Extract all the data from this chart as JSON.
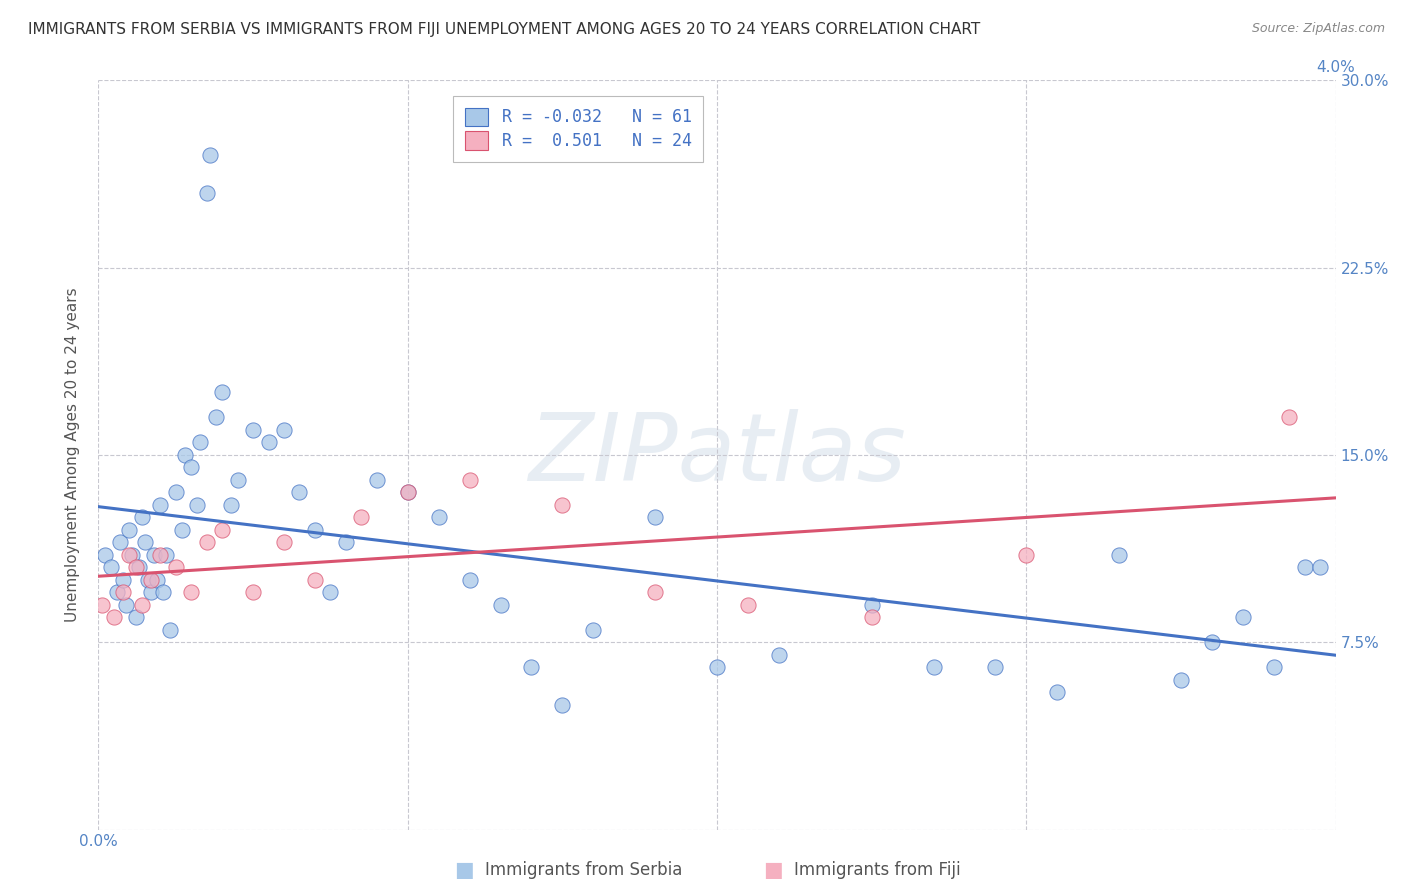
{
  "title": "IMMIGRANTS FROM SERBIA VS IMMIGRANTS FROM FIJI UNEMPLOYMENT AMONG AGES 20 TO 24 YEARS CORRELATION CHART",
  "source": "Source: ZipAtlas.com",
  "ylabel": "Unemployment Among Ages 20 to 24 years",
  "xlabel_serbia": "Immigrants from Serbia",
  "xlabel_fiji": "Immigrants from Fiji",
  "xlim": [
    0.0,
    4.0
  ],
  "ylim": [
    0.0,
    30.0
  ],
  "xticks": [
    0.0,
    1.0,
    2.0,
    3.0,
    4.0
  ],
  "yticks": [
    0.0,
    7.5,
    15.0,
    22.5,
    30.0
  ],
  "xticklabels_left": [
    "0.0%",
    "",
    "",
    "",
    ""
  ],
  "xticklabels_right": [
    "4.0%"
  ],
  "yticklabels_right": [
    "",
    "7.5%",
    "15.0%",
    "22.5%",
    "30.0%"
  ],
  "R_serbia": -0.032,
  "N_serbia": 61,
  "R_fiji": 0.501,
  "N_fiji": 24,
  "color_serbia": "#a8c8e8",
  "color_fiji": "#f5b0c0",
  "line_color_serbia": "#4472c4",
  "line_color_fiji": "#d9536f",
  "serbia_x": [
    0.02,
    0.04,
    0.06,
    0.07,
    0.08,
    0.09,
    0.1,
    0.11,
    0.12,
    0.13,
    0.14,
    0.15,
    0.16,
    0.17,
    0.18,
    0.19,
    0.2,
    0.21,
    0.22,
    0.23,
    0.25,
    0.27,
    0.28,
    0.3,
    0.32,
    0.33,
    0.35,
    0.36,
    0.38,
    0.4,
    0.43,
    0.45,
    0.5,
    0.55,
    0.6,
    0.65,
    0.7,
    0.75,
    0.8,
    0.9,
    1.0,
    1.1,
    1.2,
    1.3,
    1.4,
    1.5,
    1.6,
    1.8,
    2.0,
    2.2,
    2.5,
    2.7,
    2.9,
    3.1,
    3.3,
    3.5,
    3.6,
    3.7,
    3.8,
    3.9,
    3.95
  ],
  "serbia_y": [
    11.0,
    10.5,
    9.5,
    11.5,
    10.0,
    9.0,
    12.0,
    11.0,
    8.5,
    10.5,
    12.5,
    11.5,
    10.0,
    9.5,
    11.0,
    10.0,
    13.0,
    9.5,
    11.0,
    8.0,
    13.5,
    12.0,
    15.0,
    14.5,
    13.0,
    15.5,
    25.5,
    27.0,
    16.5,
    17.5,
    13.0,
    14.0,
    16.0,
    15.5,
    16.0,
    13.5,
    12.0,
    9.5,
    11.5,
    14.0,
    13.5,
    12.5,
    10.0,
    9.0,
    6.5,
    5.0,
    8.0,
    12.5,
    6.5,
    7.0,
    9.0,
    6.5,
    6.5,
    5.5,
    11.0,
    6.0,
    7.5,
    8.5,
    6.5,
    10.5,
    10.5
  ],
  "fiji_x": [
    0.01,
    0.05,
    0.08,
    0.1,
    0.12,
    0.14,
    0.17,
    0.2,
    0.25,
    0.3,
    0.35,
    0.4,
    0.5,
    0.6,
    0.7,
    0.85,
    1.0,
    1.2,
    1.5,
    1.8,
    2.1,
    2.5,
    3.0,
    3.85
  ],
  "fiji_y": [
    9.0,
    8.5,
    9.5,
    11.0,
    10.5,
    9.0,
    10.0,
    11.0,
    10.5,
    9.5,
    11.5,
    12.0,
    9.5,
    11.5,
    10.0,
    12.5,
    13.5,
    14.0,
    13.0,
    9.5,
    9.0,
    8.5,
    11.0,
    16.5
  ],
  "watermark_text": "ZIPatlas",
  "background_color": "#ffffff",
  "grid_color": "#c8c8d0",
  "title_fontsize": 11,
  "axis_label_fontsize": 11,
  "tick_fontsize": 11,
  "legend_fontsize": 12
}
